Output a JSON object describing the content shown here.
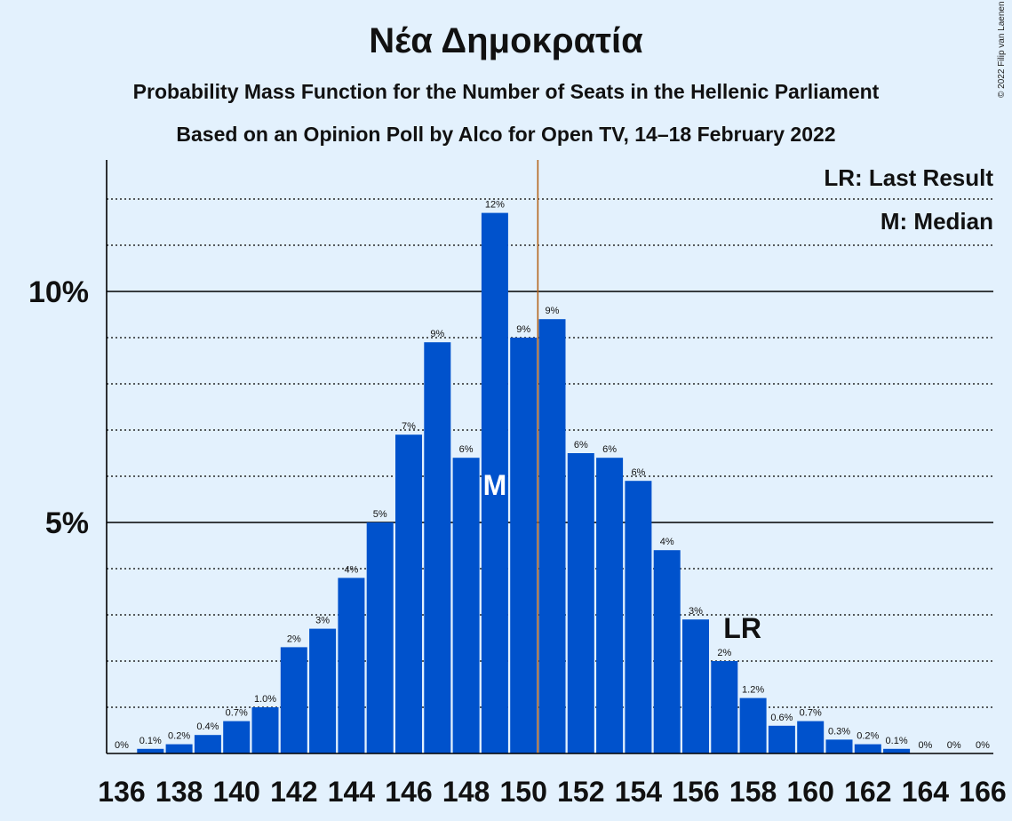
{
  "title": "Νέα Δημοκρατία",
  "subtitle1": "Probability Mass Function for the Number of Seats in the Hellenic Parliament",
  "subtitle2": "Based on an Opinion Poll by Alco for Open TV, 14–18 February 2022",
  "copyright": "© 2022 Filip van Laenen",
  "legend": {
    "last_result": "LR: Last Result",
    "median": "M: Median"
  },
  "markers": {
    "last_result_label": "LR",
    "median_label": "M"
  },
  "colors": {
    "bar": "#0052cc",
    "background": "#e3f1fd",
    "majority_line": "#b5651d"
  },
  "chart_data": {
    "type": "bar",
    "x": [
      136,
      137,
      138,
      139,
      140,
      141,
      142,
      143,
      144,
      145,
      146,
      147,
      148,
      149,
      150,
      151,
      152,
      153,
      154,
      155,
      156,
      157,
      158,
      159,
      160,
      161,
      162,
      163,
      164,
      165,
      166
    ],
    "values": [
      0,
      0.1,
      0.2,
      0.4,
      0.7,
      1.0,
      2.3,
      2.7,
      3.8,
      5.0,
      6.9,
      8.9,
      6.4,
      11.7,
      9.0,
      9.4,
      6.5,
      6.4,
      5.9,
      4.4,
      2.9,
      2.0,
      1.2,
      0.6,
      0.7,
      0.3,
      0.2,
      0.1,
      0,
      0,
      0
    ],
    "data_labels": [
      "0%",
      "0.1%",
      "0.2%",
      "0.4%",
      "0.7%",
      "1.0%",
      "2%",
      "3%",
      "4%",
      "5%",
      "7%",
      "9%",
      "6%",
      "12%",
      "9%",
      "9%",
      "6%",
      "6%",
      "6%",
      "4%",
      "3%",
      "2%",
      "1.2%",
      "0.6%",
      "0.7%",
      "0.3%",
      "0.2%",
      "0.1%",
      "0%",
      "0%",
      "0%"
    ],
    "x_tick_labels": [
      "136",
      "138",
      "140",
      "142",
      "144",
      "146",
      "148",
      "150",
      "152",
      "154",
      "156",
      "158",
      "160",
      "162",
      "164",
      "166"
    ],
    "y_tick_labels": [
      "5%",
      "10%"
    ],
    "y_ticks": [
      5,
      10
    ],
    "ylim": [
      0,
      12.8
    ],
    "majority_threshold": 151,
    "median": 149,
    "last_result": 158,
    "grid": true
  }
}
